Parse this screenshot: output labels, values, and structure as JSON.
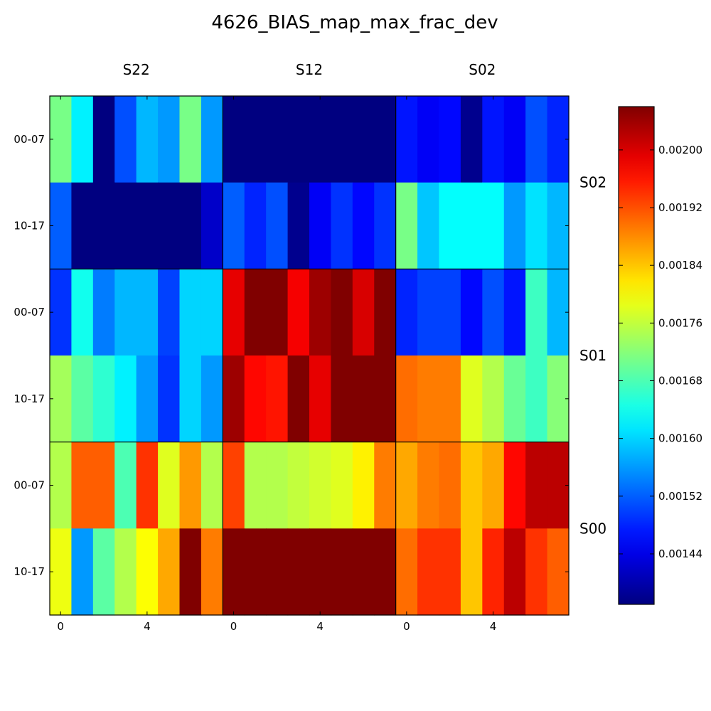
{
  "chart_data": {
    "type": "heatmap",
    "title": "4626_BIAS_map_max_frac_dev",
    "column_groups": [
      "S22",
      "S12",
      "S02"
    ],
    "row_groups": [
      "S02",
      "S01",
      "S00"
    ],
    "row_tick_labels": [
      "00-07",
      "10-17",
      "00-07",
      "10-17",
      "00-07",
      "10-17"
    ],
    "x_tick_labels": [
      "0",
      "4"
    ],
    "x_tick_positions": [
      0,
      4
    ],
    "colorbar": {
      "colormap": "jet",
      "vmin": 0.00137,
      "vmax": 0.00206,
      "ticks": [
        0.00144,
        0.00152,
        0.0016,
        0.00168,
        0.00176,
        0.00184,
        0.00192,
        0.002
      ],
      "tick_labels": [
        "0.00144",
        "0.00152",
        "0.00160",
        "0.00168",
        "0.00176",
        "0.00184",
        "0.00192",
        "0.00200"
      ]
    },
    "rows": [
      {
        "label": "S02 00-07",
        "values": [
          0.00171,
          0.00162,
          0.00137,
          0.00151,
          0.00158,
          0.00156,
          0.00171,
          0.00156,
          0.00137,
          0.00137,
          0.00137,
          0.00137,
          0.00137,
          0.00137,
          0.00137,
          0.00137,
          0.00147,
          0.00145,
          0.00146,
          0.00138,
          0.00147,
          0.00145,
          0.00151,
          0.00148
        ]
      },
      {
        "label": "S02 10-17",
        "values": [
          0.00152,
          0.00137,
          0.00137,
          0.00137,
          0.00137,
          0.00137,
          0.00137,
          0.00142,
          0.00152,
          0.00148,
          0.00151,
          0.00138,
          0.00145,
          0.00149,
          0.00146,
          0.00149,
          0.00171,
          0.00159,
          0.00163,
          0.00163,
          0.00163,
          0.00156,
          0.00161,
          0.00158
        ]
      },
      {
        "label": "S01 00-07",
        "values": [
          0.00149,
          0.00164,
          0.00154,
          0.00158,
          0.00158,
          0.0015,
          0.0016,
          0.0016,
          0.00199,
          0.00206,
          0.00206,
          0.00198,
          0.00204,
          0.00206,
          0.002,
          0.00206,
          0.00148,
          0.0015,
          0.0015,
          0.00146,
          0.00151,
          0.00147,
          0.00167,
          0.00158
        ]
      },
      {
        "label": "S01 10-17",
        "values": [
          0.00174,
          0.00169,
          0.00166,
          0.00162,
          0.00156,
          0.00149,
          0.0016,
          0.00156,
          0.00204,
          0.00197,
          0.00196,
          0.00206,
          0.00199,
          0.00206,
          0.00206,
          0.00206,
          0.0019,
          0.00189,
          0.00189,
          0.00178,
          0.00175,
          0.0017,
          0.00167,
          0.00172
        ]
      },
      {
        "label": "S00 00-07",
        "values": [
          0.00175,
          0.00191,
          0.00191,
          0.00168,
          0.00194,
          0.00178,
          0.00187,
          0.00175,
          0.00193,
          0.00175,
          0.00175,
          0.00176,
          0.00177,
          0.00178,
          0.00181,
          0.00189,
          0.00186,
          0.00189,
          0.0019,
          0.00184,
          0.00186,
          0.00197,
          0.00202,
          0.00202
        ]
      },
      {
        "label": "S00 10-17",
        "values": [
          0.00179,
          0.00156,
          0.00169,
          0.00175,
          0.0018,
          0.00186,
          0.00206,
          0.00189,
          0.00206,
          0.00206,
          0.00206,
          0.00206,
          0.00206,
          0.00206,
          0.00206,
          0.00206,
          0.0019,
          0.00194,
          0.00194,
          0.00184,
          0.00195,
          0.00202,
          0.00194,
          0.00191
        ]
      }
    ]
  }
}
